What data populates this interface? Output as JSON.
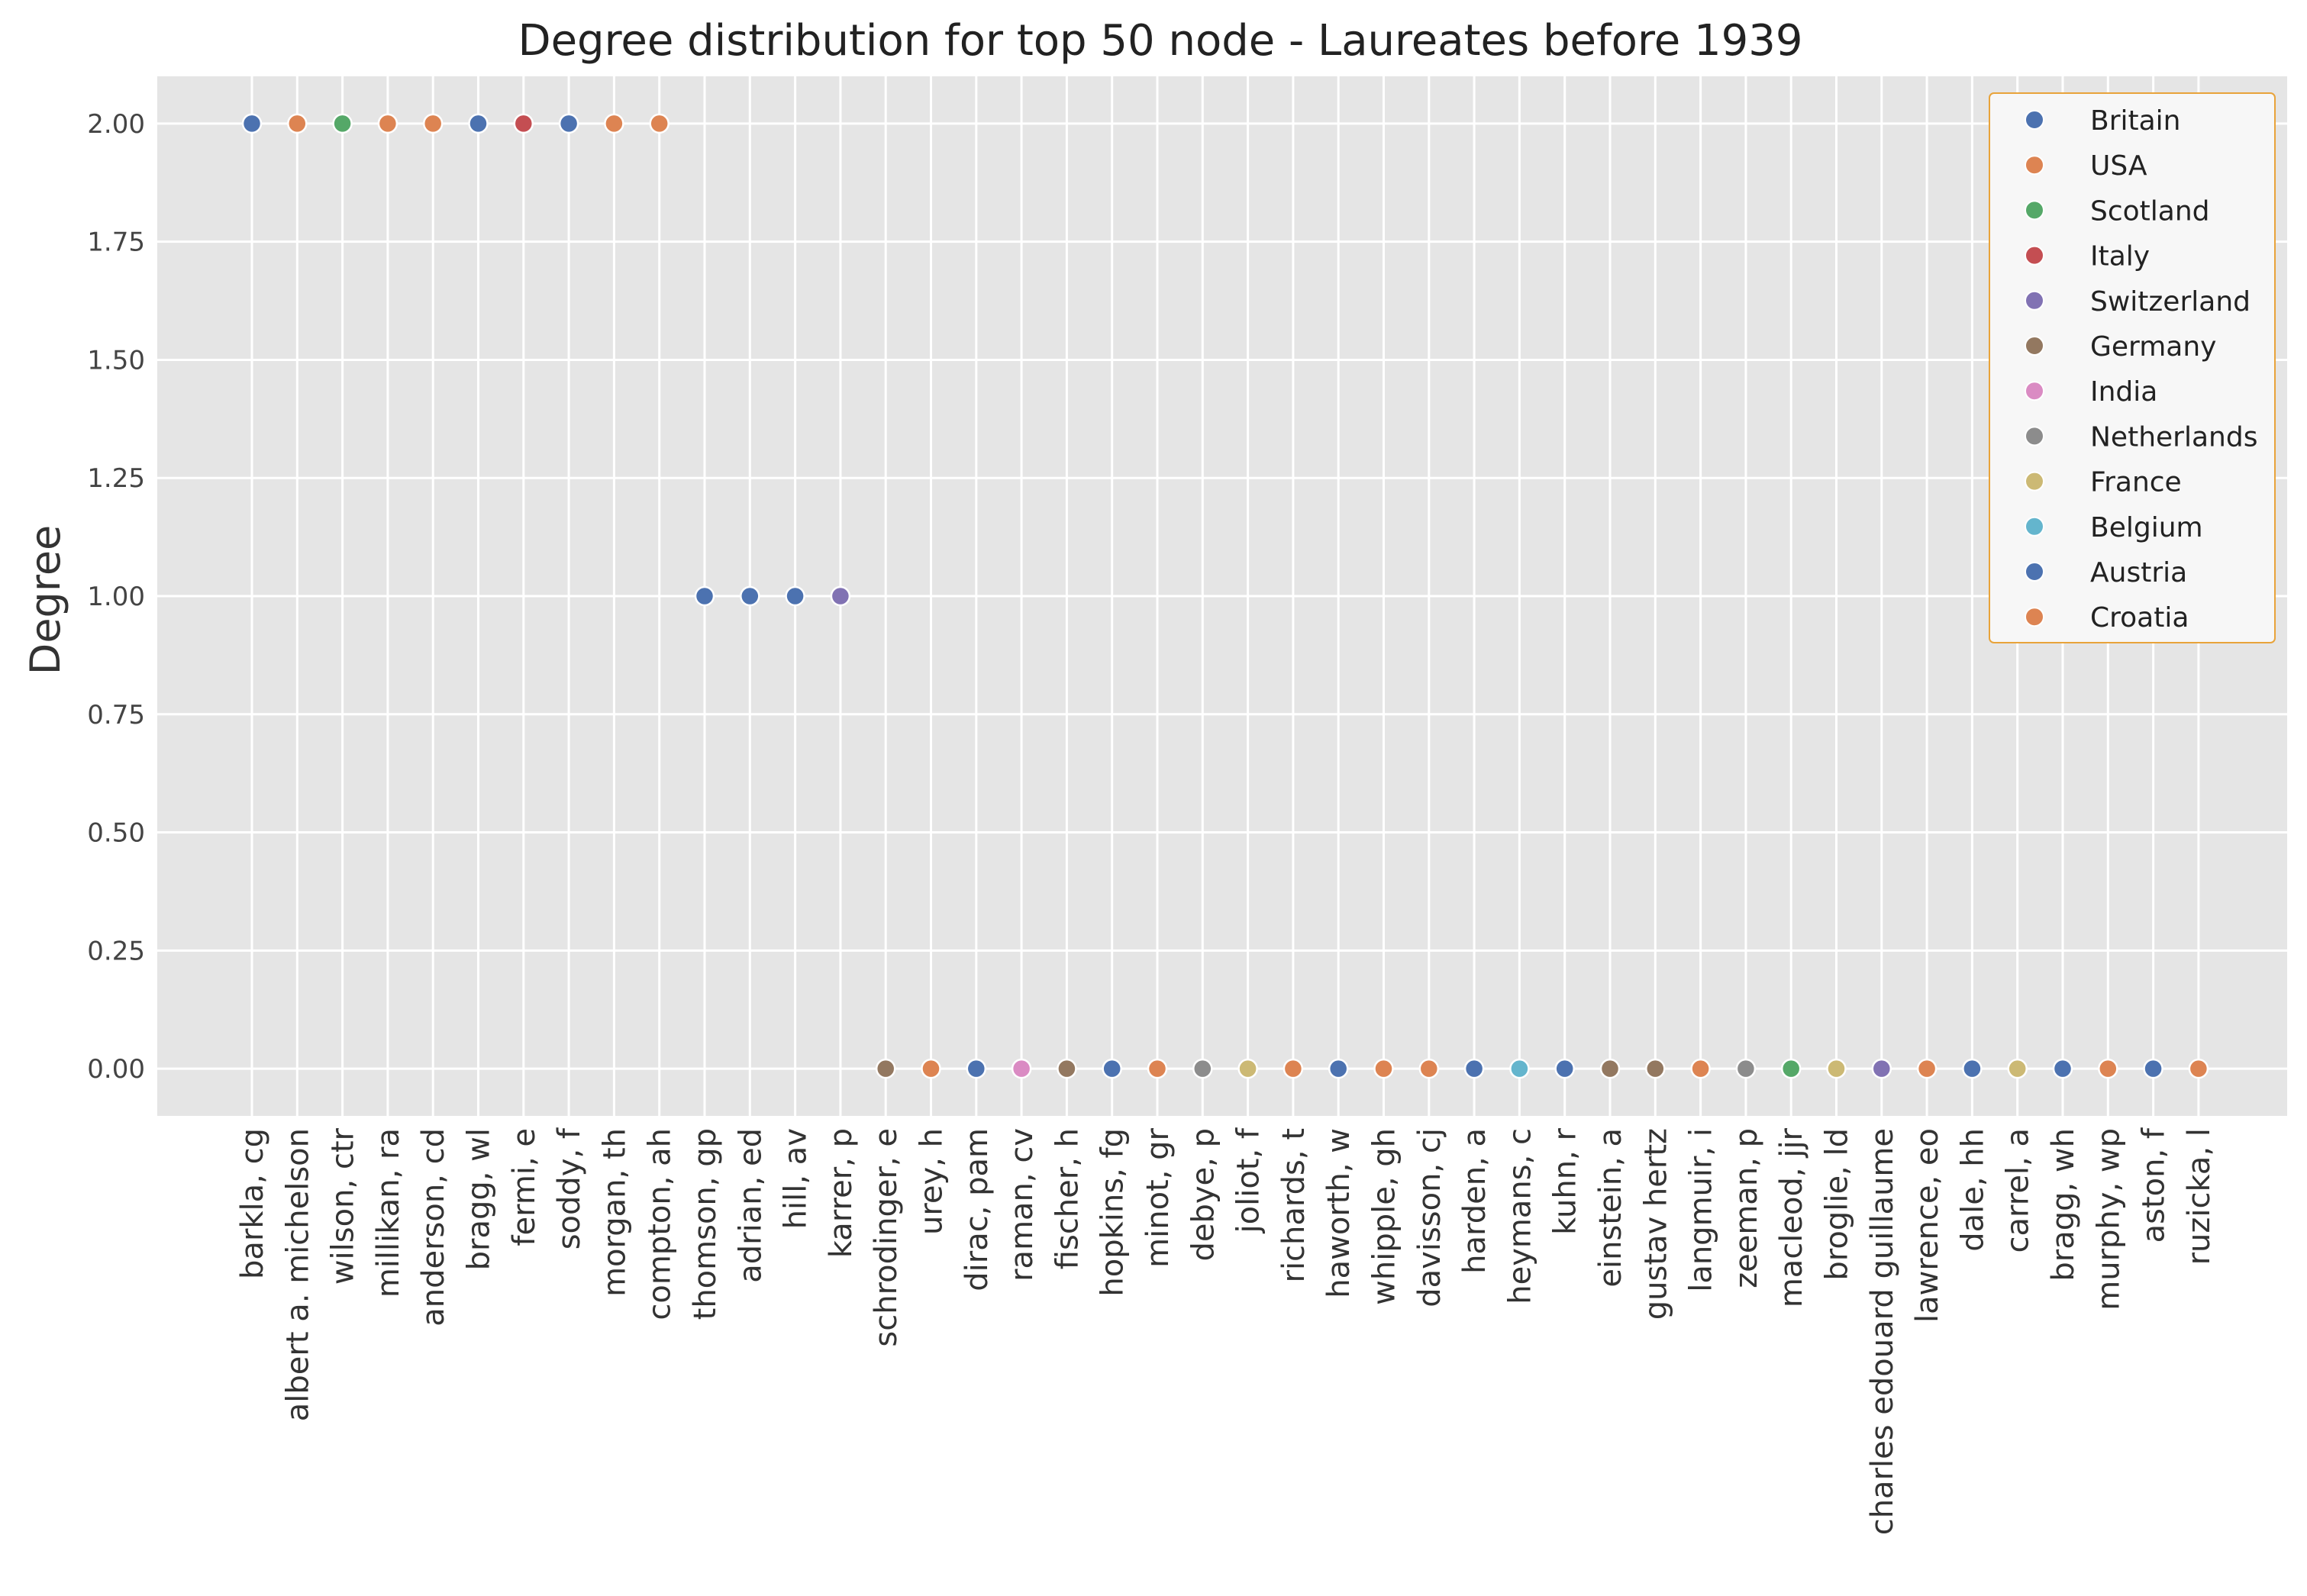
{
  "chart_data": {
    "type": "scatter",
    "title": "Degree distribution for top 50 node - Laureates before 1939",
    "xlabel": "",
    "ylabel": "Degree",
    "ylim": [
      -0.1,
      2.1
    ],
    "yticks": [
      0.0,
      0.25,
      0.5,
      0.75,
      1.0,
      1.25,
      1.5,
      1.75,
      2.0
    ],
    "ytick_labels": [
      "0.00",
      "0.25",
      "0.50",
      "0.75",
      "1.00",
      "1.25",
      "1.50",
      "1.75",
      "2.00"
    ],
    "grid": true,
    "legend_position": "top-right",
    "series": [
      {
        "name": "Britain",
        "color": "#4c72b0"
      },
      {
        "name": "USA",
        "color": "#dd8452"
      },
      {
        "name": "Scotland",
        "color": "#55a868"
      },
      {
        "name": "Italy",
        "color": "#c44e52"
      },
      {
        "name": "Switzerland",
        "color": "#8172b3"
      },
      {
        "name": "Germany",
        "color": "#937860"
      },
      {
        "name": "India",
        "color": "#da8bc3"
      },
      {
        "name": "Netherlands",
        "color": "#8c8c8c"
      },
      {
        "name": "France",
        "color": "#ccb974"
      },
      {
        "name": "Belgium",
        "color": "#64b5cd"
      },
      {
        "name": "Austria",
        "color": "#4c72b0"
      },
      {
        "name": "Croatia",
        "color": "#dd8452"
      }
    ],
    "points": [
      {
        "x": "barkla, cg",
        "y": 2,
        "country": "Britain"
      },
      {
        "x": "albert a. michelson",
        "y": 2,
        "country": "USA"
      },
      {
        "x": "wilson, ctr",
        "y": 2,
        "country": "Scotland"
      },
      {
        "x": "millikan, ra",
        "y": 2,
        "country": "USA"
      },
      {
        "x": "anderson, cd",
        "y": 2,
        "country": "USA"
      },
      {
        "x": "bragg, wl",
        "y": 2,
        "country": "Britain"
      },
      {
        "x": "fermi, e",
        "y": 2,
        "country": "Italy"
      },
      {
        "x": "soddy, f",
        "y": 2,
        "country": "Britain"
      },
      {
        "x": "morgan, th",
        "y": 2,
        "country": "USA"
      },
      {
        "x": "compton, ah",
        "y": 2,
        "country": "USA"
      },
      {
        "x": "thomson, gp",
        "y": 1,
        "country": "Britain"
      },
      {
        "x": "adrian, ed",
        "y": 1,
        "country": "Britain"
      },
      {
        "x": "hill, av",
        "y": 1,
        "country": "Britain"
      },
      {
        "x": "karrer, p",
        "y": 1,
        "country": "Switzerland"
      },
      {
        "x": "schrodinger, e",
        "y": 0,
        "country": "Germany"
      },
      {
        "x": "urey, h",
        "y": 0,
        "country": "USA"
      },
      {
        "x": "dirac, pam",
        "y": 0,
        "country": "Britain"
      },
      {
        "x": "raman, cv",
        "y": 0,
        "country": "India"
      },
      {
        "x": "fischer, h",
        "y": 0,
        "country": "Germany"
      },
      {
        "x": "hopkins, fg",
        "y": 0,
        "country": "Britain"
      },
      {
        "x": "minot, gr",
        "y": 0,
        "country": "USA"
      },
      {
        "x": "debye, p",
        "y": 0,
        "country": "Netherlands"
      },
      {
        "x": "joliot, f",
        "y": 0,
        "country": "France"
      },
      {
        "x": "richards, t",
        "y": 0,
        "country": "USA"
      },
      {
        "x": "haworth, w",
        "y": 0,
        "country": "Britain"
      },
      {
        "x": "whipple, gh",
        "y": 0,
        "country": "USA"
      },
      {
        "x": "davisson, cj",
        "y": 0,
        "country": "USA"
      },
      {
        "x": "harden, a",
        "y": 0,
        "country": "Britain"
      },
      {
        "x": "heymans, c",
        "y": 0,
        "country": "Belgium"
      },
      {
        "x": "kuhn, r",
        "y": 0,
        "country": "Austria"
      },
      {
        "x": "einstein, a",
        "y": 0,
        "country": "Germany"
      },
      {
        "x": "gustav hertz",
        "y": 0,
        "country": "Germany"
      },
      {
        "x": "langmuir, i",
        "y": 0,
        "country": "USA"
      },
      {
        "x": "zeeman, p",
        "y": 0,
        "country": "Netherlands"
      },
      {
        "x": "macleod, jjr",
        "y": 0,
        "country": "Scotland"
      },
      {
        "x": "broglie, ld",
        "y": 0,
        "country": "France"
      },
      {
        "x": "charles edouard guillaume",
        "y": 0,
        "country": "Switzerland"
      },
      {
        "x": "lawrence, eo",
        "y": 0,
        "country": "USA"
      },
      {
        "x": "dale, hh",
        "y": 0,
        "country": "Britain"
      },
      {
        "x": "carrel, a",
        "y": 0,
        "country": "France"
      },
      {
        "x": "bragg, wh",
        "y": 0,
        "country": "Britain"
      },
      {
        "x": "murphy, wp",
        "y": 0,
        "country": "USA"
      },
      {
        "x": "aston, f",
        "y": 0,
        "country": "Britain"
      },
      {
        "x": "ruzicka, l",
        "y": 0,
        "country": "Croatia"
      }
    ]
  }
}
